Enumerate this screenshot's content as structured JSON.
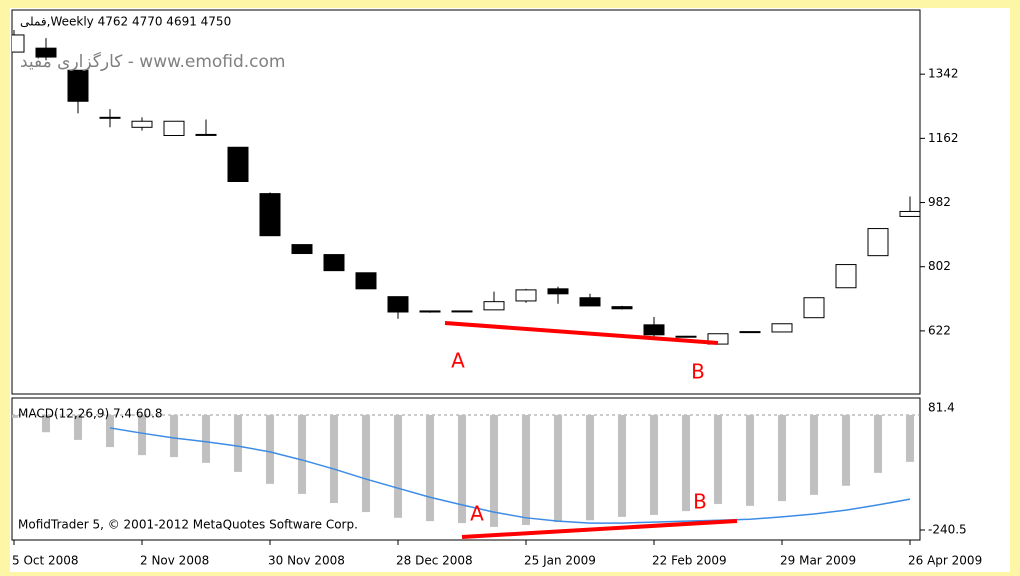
{
  "chart_data": [
    {
      "type": "candlestick",
      "title": "فملی,Weekly  4762 4770 4691 4750",
      "subtitle": "کارگزاری مفید - www.emofid.com",
      "categories": [
        "5 Oct 2008",
        null,
        null,
        null,
        "2 Nov 2008",
        null,
        null,
        null,
        "30 Nov 2008",
        null,
        null,
        null,
        "28 Dec 2008",
        null,
        null,
        null,
        "25 Jan 2009",
        null,
        null,
        null,
        "22 Feb 2009",
        null,
        null,
        null,
        "29 Mar 2009",
        null,
        null,
        null,
        "26 Apr 2009"
      ],
      "open": [
        1404,
        1415,
        1353,
        1221,
        1193,
        1170,
        1173,
        1137,
        1007,
        864,
        836,
        785,
        718,
        678,
        676,
        681,
        706,
        740,
        715,
        690,
        639,
        607,
        585,
        619,
        619,
        659,
        743,
        833,
        943
      ],
      "high": [
        1466,
        1443,
        1353,
        1244,
        1221,
        1210,
        1215,
        1137,
        1010,
        864,
        836,
        785,
        718,
        678,
        679,
        732,
        740,
        746,
        726,
        692,
        661,
        608,
        614,
        620,
        642,
        715,
        808,
        909,
        999
      ],
      "low": [
        1404,
        1381,
        1232,
        1193,
        1184,
        1170,
        1172,
        1041,
        889,
        839,
        791,
        740,
        656,
        673,
        675,
        681,
        701,
        698,
        692,
        682,
        605,
        603,
        585,
        618,
        619,
        659,
        743,
        833,
        943
      ],
      "close": [
        1452,
        1390,
        1266,
        1220,
        1210,
        1210,
        1172,
        1041,
        889,
        839,
        791,
        740,
        675,
        675,
        678,
        704,
        737,
        726,
        692,
        684,
        611,
        605,
        614,
        620,
        642,
        715,
        808,
        909,
        957
      ],
      "up_color": "#ffffff",
      "down_color": "#000000",
      "ylim": [
        445,
        1522
      ],
      "yticks": [
        1342,
        1162,
        982,
        802,
        622
      ],
      "annotations": [
        "A",
        "B"
      ]
    },
    {
      "type": "macd",
      "title": "MACD(12,26,9) 7.4 60.8",
      "footer": "MofidTrader 5, © 2001-2012 MetaQuotes Software Corp.",
      "top_label": "81.4",
      "histogram": [
        -6,
        -36,
        -52,
        -67,
        -84,
        -88,
        -100,
        -119,
        -144,
        -165,
        -184,
        -203,
        -215,
        -222,
        -226,
        -234,
        -230,
        -224,
        -220,
        -213,
        -209,
        -201,
        -186,
        -190,
        -180,
        -167,
        -148,
        -121,
        -98
      ],
      "signal": [
        null,
        null,
        null,
        -27,
        -38,
        -48,
        -56,
        -65,
        -77,
        -94,
        -113,
        -134,
        -153,
        -172,
        -188,
        -203,
        -215,
        -222,
        -226,
        -226,
        -224,
        -222,
        -220,
        -218,
        -213,
        -207,
        -199,
        -188,
        -176
      ],
      "histogram_color": "#c0c0c0",
      "signal_color": "#3c8ce6",
      "ylim": [
        -261.4,
        35.6
      ],
      "yticks": [
        -240.5
      ],
      "annotations": [
        "A",
        "B"
      ]
    }
  ]
}
